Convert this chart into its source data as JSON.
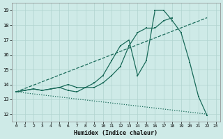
{
  "xlabel": "Humidex (Indice chaleur)",
  "xlim": [
    -0.5,
    23.5
  ],
  "ylim": [
    11.5,
    19.5
  ],
  "xticks": [
    0,
    1,
    2,
    3,
    4,
    5,
    6,
    7,
    8,
    9,
    10,
    11,
    12,
    13,
    14,
    15,
    16,
    17,
    18,
    19,
    20,
    21,
    22,
    23
  ],
  "yticks": [
    12,
    13,
    14,
    15,
    16,
    17,
    18,
    19
  ],
  "bg_color": "#ceeae7",
  "grid_color": "#b0d4d0",
  "line_color": "#1a6b5a",
  "series": [
    {
      "x": [
        0,
        1,
        2,
        3,
        4,
        5,
        6,
        7,
        8,
        9,
        10,
        11,
        12,
        13,
        14,
        15,
        16,
        17,
        18,
        19,
        20,
        21,
        22
      ],
      "y": [
        13.5,
        13.6,
        13.7,
        13.6,
        13.7,
        13.8,
        13.6,
        13.5,
        13.8,
        14.1,
        14.6,
        15.6,
        16.6,
        17.0,
        14.6,
        15.6,
        19.0,
        19.0,
        18.3,
        17.5,
        15.5,
        13.2,
        11.9
      ],
      "style": "solid",
      "marker": true
    },
    {
      "x": [
        0,
        22
      ],
      "y": [
        13.5,
        18.5
      ],
      "style": "dashed",
      "marker": false
    },
    {
      "x": [
        0,
        1,
        2,
        3,
        4,
        5,
        6,
        7,
        8,
        9,
        10,
        11,
        12,
        13,
        14,
        15,
        16,
        17,
        18
      ],
      "y": [
        13.5,
        13.6,
        13.7,
        13.6,
        13.7,
        13.8,
        14.0,
        13.8,
        13.8,
        13.8,
        14.1,
        14.6,
        15.2,
        16.6,
        17.5,
        17.8,
        17.8,
        18.3,
        18.5
      ],
      "style": "solid",
      "marker": true
    },
    {
      "x": [
        0,
        22
      ],
      "y": [
        13.5,
        12.0
      ],
      "style": "dotted",
      "marker": false
    }
  ]
}
